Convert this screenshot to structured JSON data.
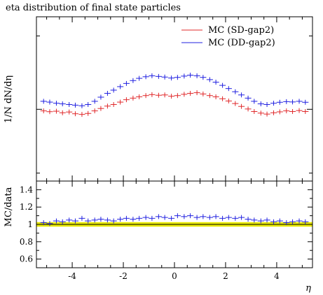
{
  "chart_data": [
    {
      "type": "scatter",
      "title": "eta distribution of final state particles",
      "ylabel": "1/N dN/dη",
      "xlim": [
        -5.4,
        5.4
      ],
      "legend_position": "top-right",
      "yticks": [],
      "x": [
        -5.12,
        -4.88,
        -4.62,
        -4.38,
        -4.12,
        -3.88,
        -3.62,
        -3.38,
        -3.12,
        -2.88,
        -2.62,
        -2.38,
        -2.12,
        -1.88,
        -1.62,
        -1.38,
        -1.12,
        -0.88,
        -0.62,
        -0.38,
        -0.12,
        0.12,
        0.38,
        0.62,
        0.88,
        1.12,
        1.38,
        1.62,
        1.88,
        2.12,
        2.38,
        2.62,
        2.88,
        3.12,
        3.38,
        3.62,
        3.88,
        4.12,
        4.38,
        4.62,
        4.88,
        5.12
      ],
      "series": [
        {
          "name": "MC (SD-gap2)",
          "color": "#e0282a",
          "values": [
            0.99,
            0.985,
            0.988,
            0.978,
            0.983,
            0.972,
            0.968,
            0.974,
            0.99,
            1.005,
            1.02,
            1.03,
            1.045,
            1.06,
            1.07,
            1.078,
            1.086,
            1.092,
            1.088,
            1.09,
            1.082,
            1.086,
            1.094,
            1.1,
            1.104,
            1.096,
            1.086,
            1.078,
            1.066,
            1.052,
            1.036,
            1.018,
            1.002,
            0.986,
            0.976,
            0.97,
            0.978,
            0.984,
            0.99,
            0.986,
            0.992,
            0.986
          ]
        },
        {
          "name": "MC (DD-gap2)",
          "color": "#2020e0",
          "values": [
            1.05,
            1.045,
            1.038,
            1.034,
            1.03,
            1.026,
            1.022,
            1.03,
            1.05,
            1.076,
            1.1,
            1.12,
            1.142,
            1.162,
            1.18,
            1.194,
            1.204,
            1.21,
            1.206,
            1.202,
            1.196,
            1.2,
            1.208,
            1.214,
            1.21,
            1.2,
            1.186,
            1.17,
            1.15,
            1.13,
            1.11,
            1.09,
            1.07,
            1.05,
            1.034,
            1.03,
            1.038,
            1.044,
            1.048,
            1.046,
            1.05,
            1.044
          ]
        }
      ]
    },
    {
      "type": "scatter",
      "xlabel": "η",
      "ylabel": "MC/data",
      "xlim": [
        -5.4,
        5.4
      ],
      "ylim": [
        0.5,
        1.5
      ],
      "xticks": [
        -4,
        -2,
        0,
        2,
        4
      ],
      "yticks": [
        0.6,
        0.8,
        1,
        1.2,
        1.4
      ],
      "reference_band": [
        0.99,
        1.01
      ],
      "band_color": "#e8e800",
      "x": [
        -5.12,
        -4.88,
        -4.62,
        -4.38,
        -4.12,
        -3.88,
        -3.62,
        -3.38,
        -3.12,
        -2.88,
        -2.62,
        -2.38,
        -2.12,
        -1.88,
        -1.62,
        -1.38,
        -1.12,
        -0.88,
        -0.62,
        -0.38,
        -0.12,
        0.12,
        0.38,
        0.62,
        0.88,
        1.12,
        1.38,
        1.62,
        1.88,
        2.12,
        2.38,
        2.62,
        2.88,
        3.12,
        3.38,
        3.62,
        3.88,
        4.12,
        4.38,
        4.62,
        4.88,
        5.12
      ],
      "series": [
        {
          "name": "MC (DD-gap2)",
          "color": "#2020e0",
          "values": [
            1.02,
            1.01,
            1.04,
            1.03,
            1.05,
            1.04,
            1.07,
            1.04,
            1.05,
            1.06,
            1.05,
            1.04,
            1.06,
            1.07,
            1.06,
            1.07,
            1.08,
            1.07,
            1.09,
            1.08,
            1.07,
            1.1,
            1.09,
            1.1,
            1.08,
            1.09,
            1.08,
            1.09,
            1.07,
            1.08,
            1.07,
            1.08,
            1.06,
            1.05,
            1.04,
            1.05,
            1.03,
            1.04,
            1.02,
            1.03,
            1.04,
            1.03
          ]
        }
      ]
    }
  ]
}
